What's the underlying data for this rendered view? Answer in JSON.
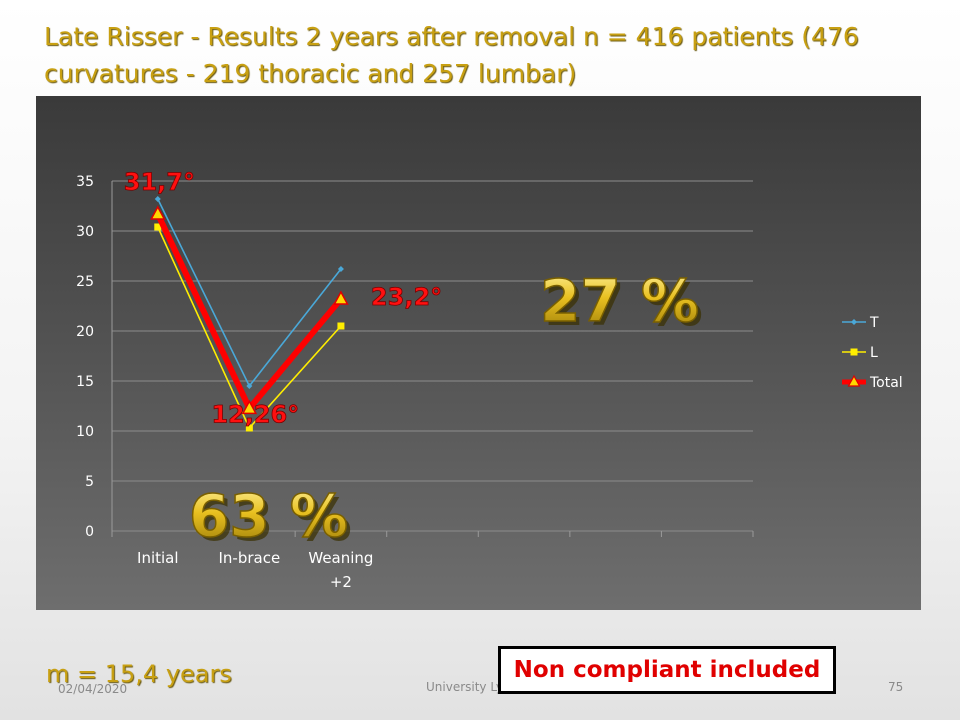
{
  "slide": {
    "title": "Late Risser - Results 2 years after removal n = 416 patients (476 curvatures - 219 thoracic and 257 lumbar)",
    "mean_age": "m = 15,4 years",
    "date": "02/04/2020",
    "institution": "University Lyon 1",
    "page_number": "75",
    "callout": "Non compliant included"
  },
  "chart_data": {
    "type": "line",
    "categories": [
      "Initial",
      "In-brace",
      "Weaning +2"
    ],
    "series": [
      {
        "name": "T",
        "values": [
          33.2,
          14.5,
          26.2
        ],
        "color": "#4aa8d8",
        "marker": "diamond"
      },
      {
        "name": "L",
        "values": [
          30.4,
          10.3,
          20.5
        ],
        "color": "#ffee00",
        "marker": "square"
      },
      {
        "name": "Total",
        "values": [
          31.7,
          12.26,
          23.2
        ],
        "color": "#ff0000",
        "marker": "triangle"
      }
    ],
    "ylim": [
      0,
      35
    ],
    "yticks": [
      "0",
      "5",
      "10",
      "15",
      "20",
      "25",
      "30",
      "35"
    ],
    "grid": true,
    "legend": "right",
    "data_labels": [
      "31,7°",
      "12,26°",
      "23,2°"
    ],
    "annotations": [
      "63 %",
      "27 %"
    ]
  }
}
